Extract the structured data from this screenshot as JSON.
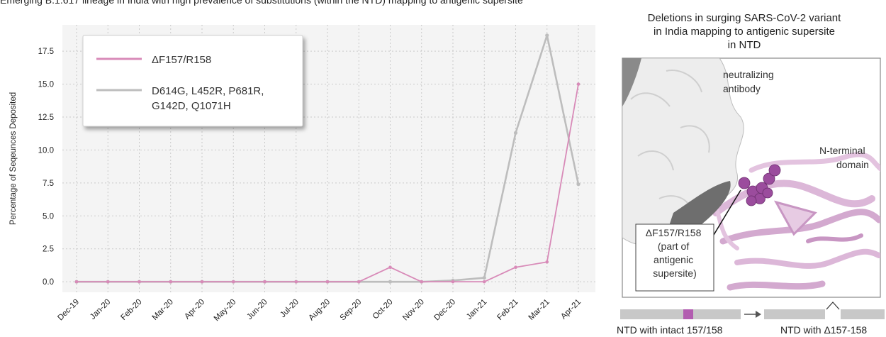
{
  "caption_top": "Emerging B.1.617 lineage in India with high prevalence of substitutions (within the NTD) mapping to antigenic supersite",
  "chart_data": {
    "type": "line",
    "categories": [
      "Dec-19",
      "Jan-20",
      "Feb-20",
      "Mar-20",
      "Apr-20",
      "May-20",
      "Jun-20",
      "Jul-20",
      "Aug-20",
      "Sep-20",
      "Oct-20",
      "Nov-20",
      "Dec-20",
      "Jan-21",
      "Feb-21",
      "Mar-21",
      "Apr-21"
    ],
    "ylabel": "Percentage of Seqeunces Deposited",
    "yticks": [
      "0.0",
      "2.5",
      "5.0",
      "7.5",
      "10.0",
      "12.5",
      "15.0",
      "17.5"
    ],
    "ylim": [
      -0.8,
      19.5
    ],
    "grid": true,
    "legend_position": "top-left",
    "series": [
      {
        "name": "ΔF157/R158",
        "color": "#d88ab8",
        "values": [
          0,
          0,
          0,
          0,
          0,
          0,
          0,
          0,
          0,
          0,
          1.1,
          0,
          0,
          0,
          1.1,
          1.5,
          15.0
        ]
      },
      {
        "name": "D614G, L452R, P681R, G142D, Q1071H",
        "name_lines": [
          "D614G, L452R, P681R,",
          "G142D, Q1071H"
        ],
        "color": "#bdbdbd",
        "values": [
          0,
          0,
          0,
          0,
          0,
          0,
          0,
          0,
          0,
          0,
          0,
          0,
          0.1,
          0.3,
          11.3,
          18.7,
          7.4
        ]
      }
    ]
  },
  "structure_panel": {
    "title_lines": [
      "Deletions in surging SARS-CoV-2 variant",
      "in India mapping to antigenic supersite",
      "in NTD"
    ],
    "label_antibody": [
      "neutralizing",
      "antibody"
    ],
    "label_ntd": [
      "N-terminal",
      "domain"
    ],
    "label_deletion": [
      "ΔF157/R158",
      "(part of",
      "antigenic",
      "supersite)"
    ],
    "colors": {
      "antibody": "#e8e8e8",
      "antibody_shadow": "#6e6e6e",
      "ntd": "#dcb7d8",
      "deletion": "#9b4c9d"
    }
  },
  "schematic": {
    "label_intact": "NTD with intact 157/158",
    "label_deleted": "NTD with Δ157-158",
    "colors": {
      "bar": "#c8c8c8",
      "site": "#b25db0",
      "arrow": "#555555"
    }
  }
}
